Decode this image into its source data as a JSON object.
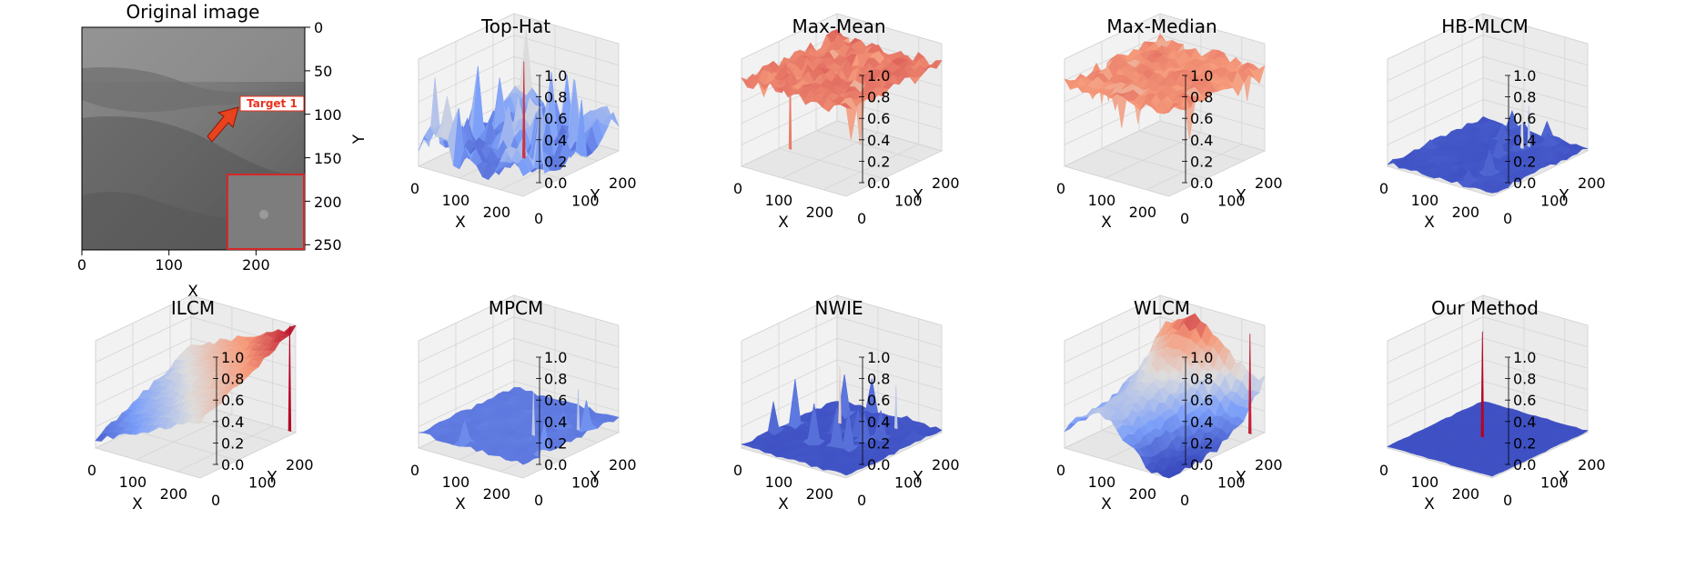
{
  "figure": {
    "original": {
      "title": "Original image",
      "xlabel": "X",
      "ylabel": "Y",
      "x_ticks": [
        "0",
        "100",
        "200"
      ],
      "y_ticks": [
        "0",
        "50",
        "100",
        "150",
        "200",
        "250"
      ],
      "annotation": "Target 1",
      "colors": {
        "annotation": "#e8321e",
        "arrow": "#e8421e",
        "inset_border": "#d62728"
      }
    }
  },
  "chart_data": [
    {
      "type": "surface3d",
      "title": "Top-Hat",
      "xlabel": "X",
      "ylabel": "Y",
      "x_ticks": [
        "0",
        "100",
        "200"
      ],
      "y_ticks": [
        "0",
        "100",
        "200"
      ],
      "z_ticks": [
        "0.0",
        "0.2",
        "0.4",
        "0.6",
        "0.8",
        "1.0"
      ],
      "zlim": [
        0,
        1
      ],
      "xlim": [
        0,
        256
      ],
      "ylim": [
        0,
        256
      ],
      "colormap": "coolwarm"
    },
    {
      "type": "surface3d",
      "title": "Max-Mean",
      "xlabel": "X",
      "ylabel": "Y",
      "x_ticks": [
        "0",
        "100",
        "200"
      ],
      "y_ticks": [
        "0",
        "100",
        "200"
      ],
      "z_ticks": [
        "0.0",
        "0.2",
        "0.4",
        "0.6",
        "0.8",
        "1.0"
      ],
      "zlim": [
        0,
        1
      ],
      "xlim": [
        0,
        256
      ],
      "ylim": [
        0,
        256
      ],
      "colormap": "coolwarm"
    },
    {
      "type": "surface3d",
      "title": "Max-Median",
      "xlabel": "X",
      "ylabel": "Y",
      "x_ticks": [
        "0",
        "100",
        "200"
      ],
      "y_ticks": [
        "0",
        "100",
        "200"
      ],
      "z_ticks": [
        "0.0",
        "0.2",
        "0.4",
        "0.6",
        "0.8",
        "1.0"
      ],
      "zlim": [
        0,
        1
      ],
      "xlim": [
        0,
        256
      ],
      "ylim": [
        0,
        256
      ],
      "colormap": "coolwarm"
    },
    {
      "type": "surface3d",
      "title": "HB-MLCM",
      "xlabel": "X",
      "ylabel": "Y",
      "x_ticks": [
        "0",
        "100",
        "200"
      ],
      "y_ticks": [
        "0",
        "100",
        "200"
      ],
      "z_ticks": [
        "0.0",
        "0.2",
        "0.4",
        "0.6",
        "0.8",
        "1.0"
      ],
      "zlim": [
        0,
        1
      ],
      "xlim": [
        0,
        256
      ],
      "ylim": [
        0,
        256
      ],
      "colormap": "coolwarm"
    },
    {
      "type": "surface3d",
      "title": "ILCM",
      "xlabel": "X",
      "ylabel": "Y",
      "x_ticks": [
        "0",
        "100",
        "200"
      ],
      "y_ticks": [
        "0",
        "100",
        "200"
      ],
      "z_ticks": [
        "0.0",
        "0.2",
        "0.4",
        "0.6",
        "0.8",
        "1.0"
      ],
      "zlim": [
        0,
        1
      ],
      "xlim": [
        0,
        256
      ],
      "ylim": [
        0,
        256
      ],
      "colormap": "coolwarm"
    },
    {
      "type": "surface3d",
      "title": "MPCM",
      "xlabel": "X",
      "ylabel": "Y",
      "x_ticks": [
        "0",
        "100",
        "200"
      ],
      "y_ticks": [
        "0",
        "100",
        "200"
      ],
      "z_ticks": [
        "0.0",
        "0.2",
        "0.4",
        "0.6",
        "0.8",
        "1.0"
      ],
      "zlim": [
        0,
        1
      ],
      "xlim": [
        0,
        256
      ],
      "ylim": [
        0,
        256
      ],
      "colormap": "coolwarm"
    },
    {
      "type": "surface3d",
      "title": "NWIE",
      "xlabel": "X",
      "ylabel": "Y",
      "x_ticks": [
        "0",
        "100",
        "200"
      ],
      "y_ticks": [
        "0",
        "100",
        "200"
      ],
      "z_ticks": [
        "0.0",
        "0.2",
        "0.4",
        "0.6",
        "0.8",
        "1.0"
      ],
      "zlim": [
        0,
        1
      ],
      "xlim": [
        0,
        256
      ],
      "ylim": [
        0,
        256
      ],
      "colormap": "coolwarm"
    },
    {
      "type": "surface3d",
      "title": "WLCM",
      "xlabel": "X",
      "ylabel": "Y",
      "x_ticks": [
        "0",
        "100",
        "200"
      ],
      "y_ticks": [
        "0",
        "100",
        "200"
      ],
      "z_ticks": [
        "0.0",
        "0.2",
        "0.4",
        "0.6",
        "0.8",
        "1.0"
      ],
      "zlim": [
        0,
        1
      ],
      "xlim": [
        0,
        256
      ],
      "ylim": [
        0,
        256
      ],
      "colormap": "coolwarm"
    },
    {
      "type": "surface3d",
      "title": "Our Method",
      "xlabel": "X",
      "ylabel": "Y",
      "x_ticks": [
        "0",
        "100",
        "200"
      ],
      "y_ticks": [
        "0",
        "100",
        "200"
      ],
      "z_ticks": [
        "0.0",
        "0.2",
        "0.4",
        "0.6",
        "0.8",
        "1.0"
      ],
      "zlim": [
        0,
        1
      ],
      "xlim": [
        0,
        256
      ],
      "ylim": [
        0,
        256
      ],
      "colormap": "coolwarm"
    }
  ]
}
